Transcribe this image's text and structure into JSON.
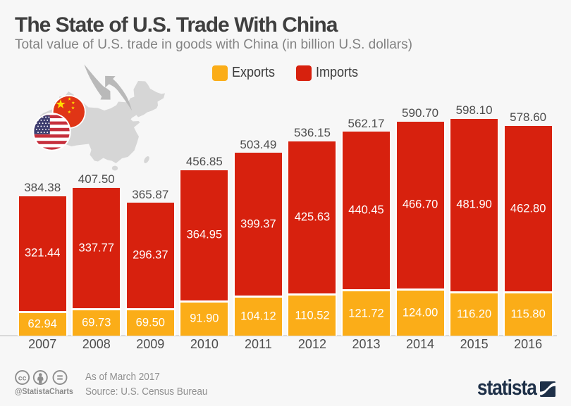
{
  "title": "The State of U.S. Trade With China",
  "subtitle": "Total value of U.S. trade in goods with China (in billion U.S. dollars)",
  "legend": {
    "exports_label": "Exports",
    "imports_label": "Imports"
  },
  "colors": {
    "exports": "#fbad18",
    "imports": "#d7210e",
    "background": "#f7f7f7",
    "brand_navy": "#1e3048"
  },
  "chart_data": {
    "type": "bar",
    "stacked": true,
    "categories": [
      "2007",
      "2008",
      "2009",
      "2010",
      "2011",
      "2012",
      "2013",
      "2014",
      "2015",
      "2016"
    ],
    "series": [
      {
        "name": "Exports",
        "color": "#fbad18",
        "values": [
          62.94,
          69.73,
          69.5,
          91.9,
          104.12,
          110.52,
          121.72,
          124.0,
          116.2,
          115.8
        ]
      },
      {
        "name": "Imports",
        "color": "#d7210e",
        "values": [
          321.44,
          337.77,
          296.37,
          364.95,
          399.37,
          425.63,
          440.45,
          466.7,
          481.9,
          462.8
        ]
      }
    ],
    "totals": [
      384.38,
      407.5,
      365.87,
      456.85,
      503.49,
      536.15,
      562.17,
      590.7,
      598.1,
      578.6
    ],
    "title": "The State of U.S. Trade With China",
    "xlabel": "",
    "ylabel": "billion U.S. dollars",
    "legend_position": "top",
    "grid": false,
    "ylim": [
      0,
      640
    ]
  },
  "footer": {
    "as_of": "As of March 2017",
    "source": "Source: U.S. Census Bureau",
    "handle": "@StatistaCharts",
    "brand": "statista"
  }
}
